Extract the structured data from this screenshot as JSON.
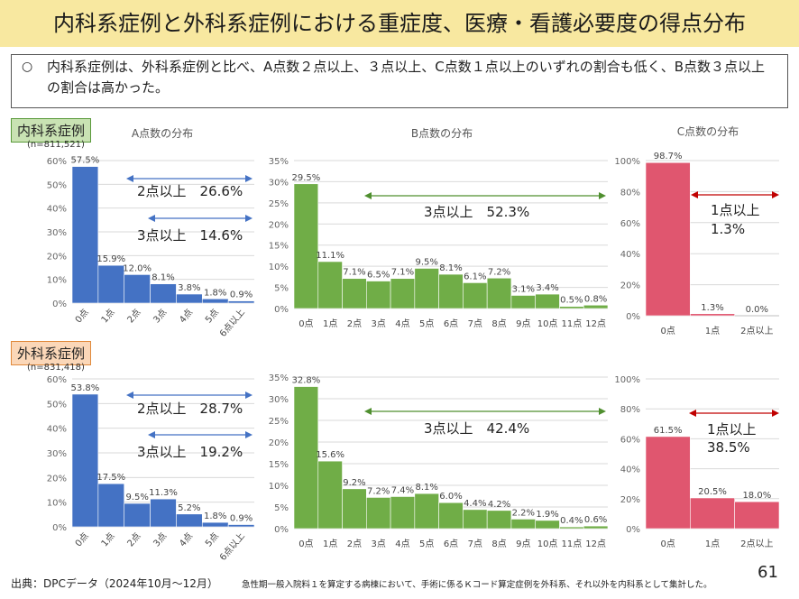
{
  "title": "内科系症例と外科系症例における重症度、医療・看護必要度の得点分布",
  "summary": {
    "bullet": "○",
    "text": "内科系症例は、外科系症例と比べ、A点数２点以上、３点以上、C点数１点以上のいずれの割合も低く、B点数３点以上の割合は高かった。"
  },
  "groups": [
    {
      "label": "内科系症例",
      "n": "(n=811,521)",
      "bg": "#c9e2b3",
      "border": "#5a9a3a"
    },
    {
      "label": "外科系症例",
      "n": "(n=831,418)",
      "bg": "#fbd7b8",
      "border": "#e08a3c"
    }
  ],
  "chart_titles": {
    "a": "A点数の分布",
    "b": "B点数の分布",
    "c": "C点数の分布"
  },
  "colors": {
    "a": "#4472c4",
    "b": "#70ad47",
    "c": "#e0566f",
    "arrow_a": "#4472c4",
    "arrow_b": "#4f8f2f",
    "arrow_c": "#c00000"
  },
  "chart_data": [
    {
      "type": "bar",
      "group": "内科系症例",
      "title": "A点数の分布",
      "categories": [
        "0点",
        "1点",
        "2点",
        "3点",
        "4点",
        "5点",
        "6点以上"
      ],
      "values": [
        57.5,
        15.9,
        12.0,
        8.1,
        3.8,
        1.8,
        0.9
      ],
      "labels": [
        "57.5%",
        "15.9%",
        "12.0%",
        "8.1%",
        "3.8%",
        "1.8%",
        "0.9%"
      ],
      "yticks": [
        "0%",
        "10%",
        "20%",
        "30%",
        "40%",
        "50%",
        "60%"
      ],
      "ylim": [
        0,
        60
      ],
      "annotations": [
        {
          "text": "2点以上　26.6%"
        },
        {
          "text": "3点以上　14.6%"
        }
      ]
    },
    {
      "type": "bar",
      "group": "内科系症例",
      "title": "B点数の分布",
      "categories": [
        "0点",
        "1点",
        "2点",
        "3点",
        "4点",
        "5点",
        "6点",
        "7点",
        "8点",
        "9点",
        "10点",
        "11点",
        "12点"
      ],
      "values": [
        29.5,
        11.1,
        7.1,
        6.5,
        7.1,
        9.5,
        8.1,
        6.1,
        7.2,
        3.1,
        3.4,
        0.5,
        0.8
      ],
      "labels": [
        "29.5%",
        "11.1%",
        "7.1%",
        "6.5%",
        "7.1%",
        "9.5%",
        "8.1%",
        "6.1%",
        "7.2%",
        "3.1%",
        "3.4%",
        "0.5%",
        "0.8%"
      ],
      "yticks": [
        "0%",
        "5%",
        "10%",
        "15%",
        "20%",
        "25%",
        "30%",
        "35%"
      ],
      "ylim": [
        0,
        35
      ],
      "annotations": [
        {
          "text": "3点以上　52.3%"
        }
      ]
    },
    {
      "type": "bar",
      "group": "内科系症例",
      "title": "C点数の分布",
      "categories": [
        "0点",
        "1点",
        "2点以上"
      ],
      "values": [
        98.7,
        1.3,
        0.0
      ],
      "labels": [
        "98.7%",
        "1.3%",
        "0.0%"
      ],
      "yticks": [
        "0%",
        "20%",
        "40%",
        "60%",
        "80%",
        "100%"
      ],
      "ylim": [
        0,
        100
      ],
      "annotations": [
        {
          "text": "1点以上"
        },
        {
          "text": "1.3%"
        }
      ]
    },
    {
      "type": "bar",
      "group": "外科系症例",
      "title": "A点数の分布",
      "categories": [
        "0点",
        "1点",
        "2点",
        "3点",
        "4点",
        "5点",
        "6点以上"
      ],
      "values": [
        53.8,
        17.5,
        9.5,
        11.3,
        5.2,
        1.8,
        0.9
      ],
      "labels": [
        "53.8%",
        "17.5%",
        "9.5%",
        "11.3%",
        "5.2%",
        "1.8%",
        "0.9%"
      ],
      "yticks": [
        "0%",
        "10%",
        "20%",
        "30%",
        "40%",
        "50%",
        "60%"
      ],
      "ylim": [
        0,
        60
      ],
      "annotations": [
        {
          "text": "2点以上　28.7%"
        },
        {
          "text": "3点以上　19.2%"
        }
      ]
    },
    {
      "type": "bar",
      "group": "外科系症例",
      "title": "B点数の分布",
      "categories": [
        "0点",
        "1点",
        "2点",
        "3点",
        "4点",
        "5点",
        "6点",
        "7点",
        "8点",
        "9点",
        "10点",
        "11点",
        "12点"
      ],
      "values": [
        32.8,
        15.6,
        9.2,
        7.2,
        7.4,
        8.1,
        6.0,
        4.4,
        4.2,
        2.2,
        1.9,
        0.4,
        0.6
      ],
      "labels": [
        "32.8%",
        "15.6%",
        "9.2%",
        "7.2%",
        "7.4%",
        "8.1%",
        "6.0%",
        "4.4%",
        "4.2%",
        "2.2%",
        "1.9%",
        "0.4%",
        "0.6%"
      ],
      "yticks": [
        "0%",
        "5%",
        "10%",
        "15%",
        "20%",
        "25%",
        "30%",
        "35%"
      ],
      "ylim": [
        0,
        35
      ],
      "annotations": [
        {
          "text": "3点以上　42.4%"
        }
      ]
    },
    {
      "type": "bar",
      "group": "外科系症例",
      "title": "C点数の分布",
      "categories": [
        "0点",
        "1点",
        "2点以上"
      ],
      "values": [
        61.5,
        20.5,
        18.0
      ],
      "labels": [
        "61.5%",
        "20.5%",
        "18.0%"
      ],
      "yticks": [
        "0%",
        "20%",
        "40%",
        "60%",
        "80%",
        "100%"
      ],
      "ylim": [
        0,
        100
      ],
      "annotations": [
        {
          "text": "1点以上"
        },
        {
          "text": "38.5%"
        }
      ]
    }
  ],
  "footer": {
    "source": "出典：DPCデータ（2024年10月〜12月）",
    "note": "急性期一般入院料１を算定する病棟において、手術に係るＫコード算定症例を外科系、それ以外を内科系として集計した。",
    "page": "61"
  }
}
